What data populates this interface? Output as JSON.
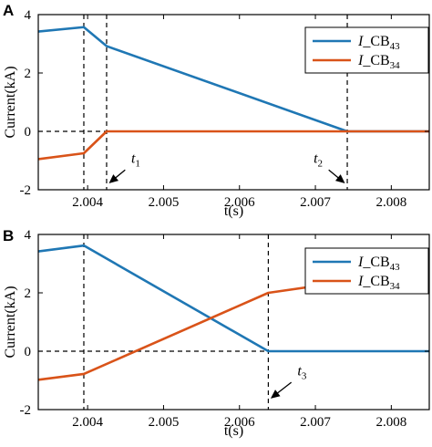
{
  "colors": {
    "series_blue": "#1f77b4",
    "series_orange": "#d95319",
    "axis": "#000000",
    "guide": "#000000"
  },
  "chart_data": [
    {
      "panel_label": "A",
      "type": "line",
      "xlabel": "t(s)",
      "ylabel": "Current(kA)",
      "xlim": [
        2.00335,
        2.0085
      ],
      "ylim": [
        -2,
        4
      ],
      "xticks": [
        2.004,
        2.005,
        2.006,
        2.007,
        2.008
      ],
      "xtick_labels": [
        "2.004",
        "2.005",
        "2.006",
        "2.007",
        "2.008"
      ],
      "yticks": [
        -2,
        0,
        2,
        4
      ],
      "ytick_labels": [
        "-2",
        "0",
        "2",
        "4"
      ],
      "grid": false,
      "legend": "top-right",
      "series": [
        {
          "name_prefix": "I",
          "name_suffix": "_CB",
          "name_sub": "43",
          "color": "#1f77b4",
          "points": [
            [
              2.00335,
              3.42
            ],
            [
              2.00395,
              3.57
            ],
            [
              2.00425,
              2.92
            ],
            [
              2.00742,
              0.0
            ],
            [
              2.0085,
              0.0
            ]
          ]
        },
        {
          "name_prefix": "I",
          "name_suffix": "_CB",
          "name_sub": "34",
          "color": "#d95319",
          "points": [
            [
              2.00335,
              -0.95
            ],
            [
              2.00395,
              -0.75
            ],
            [
              2.00425,
              0.0
            ],
            [
              2.0085,
              0.0
            ]
          ]
        }
      ],
      "vlines": [
        2.00395,
        2.00425,
        2.00742
      ],
      "hline": 0,
      "annotations": [
        {
          "label_main": "t",
          "label_sub": "1",
          "point_x": 2.00428,
          "point_y": -1.78,
          "text_x": 2.00455,
          "text_y": -1.2
        },
        {
          "label_main": "t",
          "label_sub": "2",
          "point_x": 2.00739,
          "point_y": -1.78,
          "text_x": 2.00712,
          "text_y": -1.2
        }
      ]
    },
    {
      "panel_label": "B",
      "type": "line",
      "xlabel": "t(s)",
      "ylabel": "Current(kA)",
      "xlim": [
        2.00335,
        2.0085
      ],
      "ylim": [
        -2,
        4
      ],
      "xticks": [
        2.004,
        2.005,
        2.006,
        2.007,
        2.008
      ],
      "xtick_labels": [
        "2.004",
        "2.005",
        "2.006",
        "2.007",
        "2.008"
      ],
      "yticks": [
        -2,
        0,
        2,
        4
      ],
      "ytick_labels": [
        "-2",
        "0",
        "2",
        "4"
      ],
      "grid": false,
      "legend": "top-right",
      "series": [
        {
          "name_prefix": "I",
          "name_suffix": "_CB",
          "name_sub": "43",
          "color": "#1f77b4",
          "points": [
            [
              2.00335,
              3.42
            ],
            [
              2.00395,
              3.62
            ],
            [
              2.00638,
              0.0
            ],
            [
              2.0085,
              0.0
            ]
          ]
        },
        {
          "name_prefix": "I",
          "name_suffix": "_CB",
          "name_sub": "34",
          "color": "#d95319",
          "points": [
            [
              2.00335,
              -0.98
            ],
            [
              2.00395,
              -0.78
            ],
            [
              2.00638,
              2.0
            ],
            [
              2.0075,
              2.42
            ],
            [
              2.0085,
              2.88
            ]
          ]
        }
      ],
      "vlines": [
        2.00395,
        2.00638
      ],
      "hline": 0,
      "annotations": [
        {
          "label_main": "t",
          "label_sub": "3",
          "point_x": 2.00641,
          "point_y": -1.62,
          "text_x": 2.00674,
          "text_y": -0.95
        }
      ]
    }
  ]
}
